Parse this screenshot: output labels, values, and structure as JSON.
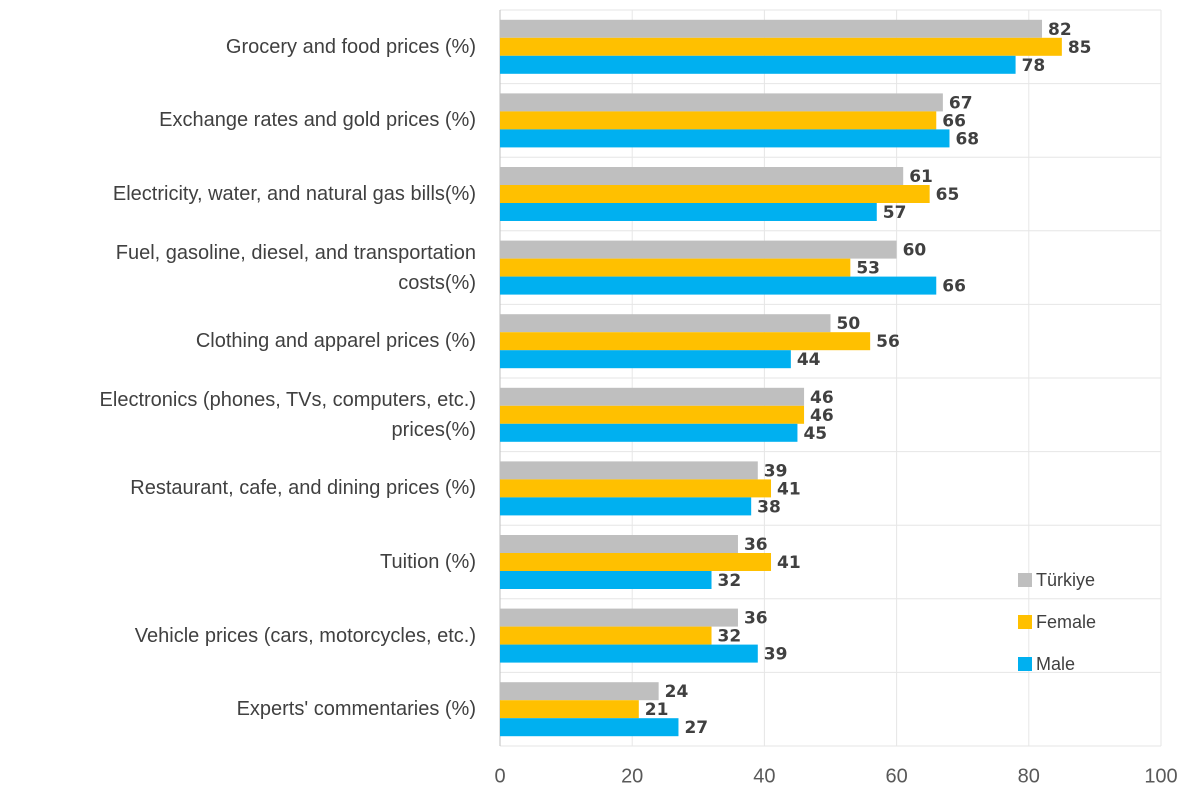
{
  "chart_data": {
    "type": "bar",
    "orientation": "horizontal",
    "categories": [
      "Grocery and food prices (%)",
      "Exchange rates and gold prices (%)",
      "Electricity, water, and natural gas bills(%)",
      "Fuel, gasoline, diesel, and transportation\ncosts(%)",
      "Clothing and apparel prices (%)",
      "Electronics (phones, TVs, computers, etc.)\nprices(%)",
      "Restaurant, cafe, and dining prices (%)",
      "Tuition (%)",
      "Vehicle prices (cars, motorcycles, etc.)",
      "Experts' commentaries (%)"
    ],
    "series": [
      {
        "name": "Türkiye",
        "color": "#bfbfbf",
        "values": [
          82,
          67,
          61,
          60,
          50,
          46,
          39,
          36,
          36,
          24
        ]
      },
      {
        "name": "Female",
        "color": "#ffc000",
        "values": [
          85,
          66,
          65,
          53,
          56,
          46,
          41,
          41,
          32,
          21
        ]
      },
      {
        "name": "Male",
        "color": "#00b0f0",
        "values": [
          78,
          68,
          57,
          66,
          44,
          45,
          38,
          32,
          39,
          27
        ]
      }
    ],
    "xlim": [
      0,
      100
    ],
    "xticks": [
      0,
      20,
      40,
      60,
      80,
      100
    ],
    "grid": true,
    "legend": "lower right"
  }
}
